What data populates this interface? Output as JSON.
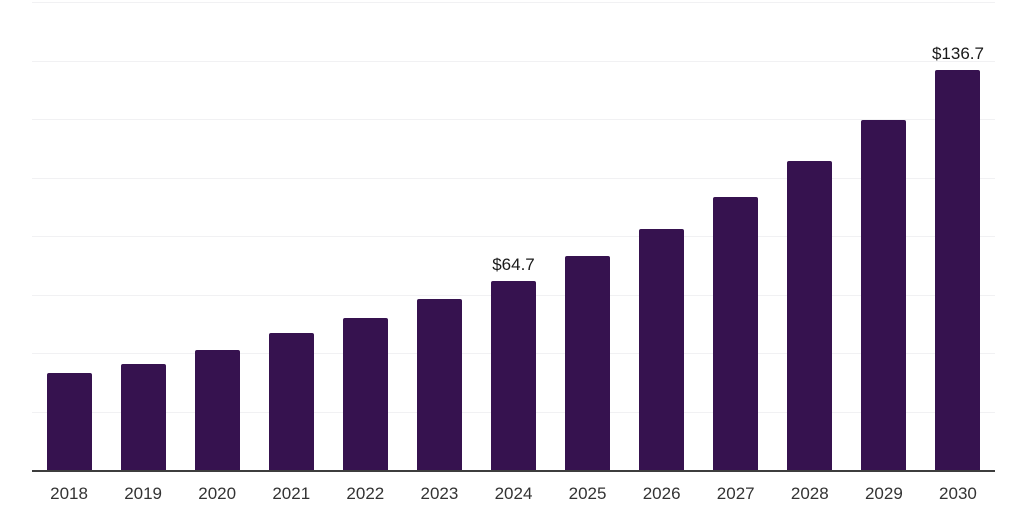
{
  "chart_data": {
    "type": "bar",
    "title": "",
    "xlabel": "",
    "ylabel": "",
    "categories": [
      "2018",
      "2019",
      "2020",
      "2021",
      "2022",
      "2023",
      "2024",
      "2025",
      "2026",
      "2027",
      "2028",
      "2029",
      "2030"
    ],
    "values": [
      33.0,
      36.4,
      41.2,
      46.7,
      52.0,
      58.5,
      64.7,
      73.3,
      82.5,
      93.4,
      105.8,
      119.8,
      136.7
    ],
    "bar_labels": [
      "",
      "",
      "",
      "",
      "",
      "",
      "$64.7",
      "",
      "",
      "",
      "",
      "",
      "$136.7"
    ],
    "ylim": [
      0,
      160
    ],
    "grid_step": 20,
    "grid": "horizontal-only",
    "legend": "none",
    "y_tick_labels_visible": false,
    "colors": {
      "bar": "#36124F",
      "axis_line": "#3d3d3d",
      "gridline": "#f1f1f3",
      "tick_label": "#333333",
      "data_label": "#1a1a1a",
      "background": "#ffffff"
    }
  }
}
